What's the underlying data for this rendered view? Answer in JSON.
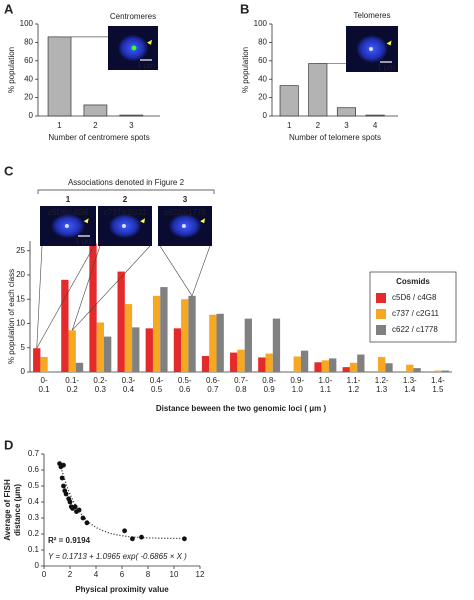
{
  "chart_data": [
    {
      "type": "bar",
      "label": "A",
      "inset_title": "Centromeres",
      "scale_bar": "1 µm",
      "categories": [
        "1",
        "2",
        "3"
      ],
      "values": [
        86,
        12,
        1
      ],
      "color": "#b3b3b3",
      "ylim": [
        0,
        100
      ],
      "yticks": [
        0,
        20,
        40,
        60,
        80,
        100
      ],
      "ylabel": "% population",
      "xlabel": "Number of centromere spots"
    },
    {
      "type": "bar",
      "label": "B",
      "inset_title": "Telomeres",
      "scale_bar": "1 µm",
      "categories": [
        "1",
        "2",
        "3",
        "4"
      ],
      "values": [
        33,
        57,
        9,
        1
      ],
      "color": "#b3b3b3",
      "ylim": [
        0,
        100
      ],
      "yticks": [
        0,
        20,
        40,
        60,
        80,
        100
      ],
      "ylabel": "% population",
      "xlabel": "Number of telomere spots"
    },
    {
      "type": "grouped_bar",
      "label": "C",
      "inset_header": "Associations denoted in Figure 2",
      "insets": [
        {
          "number": "1",
          "label": "c5D6/c4G8"
        },
        {
          "number": "2",
          "label": "c737/c2G11"
        },
        {
          "number": "3",
          "label": "c622/c1778"
        }
      ],
      "scale_bar": "1 μm",
      "categories": [
        [
          "0-",
          "0.1"
        ],
        [
          "0.1-",
          "0.2"
        ],
        [
          "0.2-",
          "0.3"
        ],
        [
          "0.3-",
          "0.4"
        ],
        [
          "0.4-",
          "0.5"
        ],
        [
          "0.5-",
          "0.6"
        ],
        [
          "0.6-",
          "0.7"
        ],
        [
          "0.7-",
          "0.8"
        ],
        [
          "0.8-",
          "0.9"
        ],
        [
          "0.9-",
          "1.0"
        ],
        [
          "1.0-",
          "1.1"
        ],
        [
          "1.1-",
          "1.2"
        ],
        [
          "1.2-",
          "1.3"
        ],
        [
          "1.3-",
          "1.4"
        ],
        [
          "1.4-",
          "1.5"
        ]
      ],
      "series": [
        {
          "name": "c5D6 / c4G8",
          "color": "#e52a2b",
          "values": [
            4.9,
            19,
            26.5,
            20.7,
            9,
            9,
            3.3,
            4,
            3,
            0,
            2,
            1,
            0,
            0,
            0
          ]
        },
        {
          "name": "c737 / c2G11",
          "color": "#f7a823",
          "values": [
            3.1,
            8.6,
            10.2,
            14,
            15.7,
            15,
            11.8,
            4.6,
            3.8,
            3.2,
            2.4,
            1.9,
            3.1,
            1.5,
            0.3
          ]
        },
        {
          "name": "c622 / c1778",
          "color": "#808080",
          "values": [
            0,
            1.9,
            7.3,
            9.2,
            17.5,
            15.7,
            12,
            11,
            11,
            4.4,
            2.8,
            3.6,
            1.8,
            0.8,
            0.3
          ]
        }
      ],
      "legend_title": "Cosmids",
      "legend": "upper right",
      "ylim": [
        0,
        27
      ],
      "yticks": [
        0,
        5,
        10,
        15,
        20,
        25
      ],
      "ylabel": "% population of each class",
      "xlabel": "Distance beween the two genomic loci ( μm )"
    },
    {
      "type": "scatter",
      "label": "D",
      "x": [
        1.2,
        1.3,
        1.5,
        1.4,
        1.5,
        1.6,
        1.7,
        1.9,
        2,
        2.1,
        2.2,
        2.4,
        2.5,
        2.7,
        3,
        3.3,
        6.2,
        6.8,
        7.5,
        10.8
      ],
      "y": [
        0.64,
        0.62,
        0.63,
        0.55,
        0.5,
        0.47,
        0.45,
        0.42,
        0.4,
        0.37,
        0.36,
        0.37,
        0.34,
        0.35,
        0.3,
        0.27,
        0.22,
        0.17,
        0.18,
        0.17
      ],
      "fit": {
        "intercept": 0.1713,
        "amplitude": 1.0965,
        "rate": -0.6865
      },
      "annotations": [
        "R² = 0.9194",
        "Y = 0.1713 + 1.0965 exp( -0.6865 × X )"
      ],
      "xlim": [
        0,
        12
      ],
      "xticks": [
        0,
        2,
        4,
        6,
        8,
        10,
        12
      ],
      "ylim": [
        0,
        0.7
      ],
      "yticks": [
        0,
        0.1,
        0.2,
        0.3,
        0.4,
        0.5,
        0.6,
        0.7
      ],
      "xlabel": "Physical proximity value",
      "ylabel": [
        "Average of FISH",
        "distance (μm)"
      ]
    }
  ]
}
